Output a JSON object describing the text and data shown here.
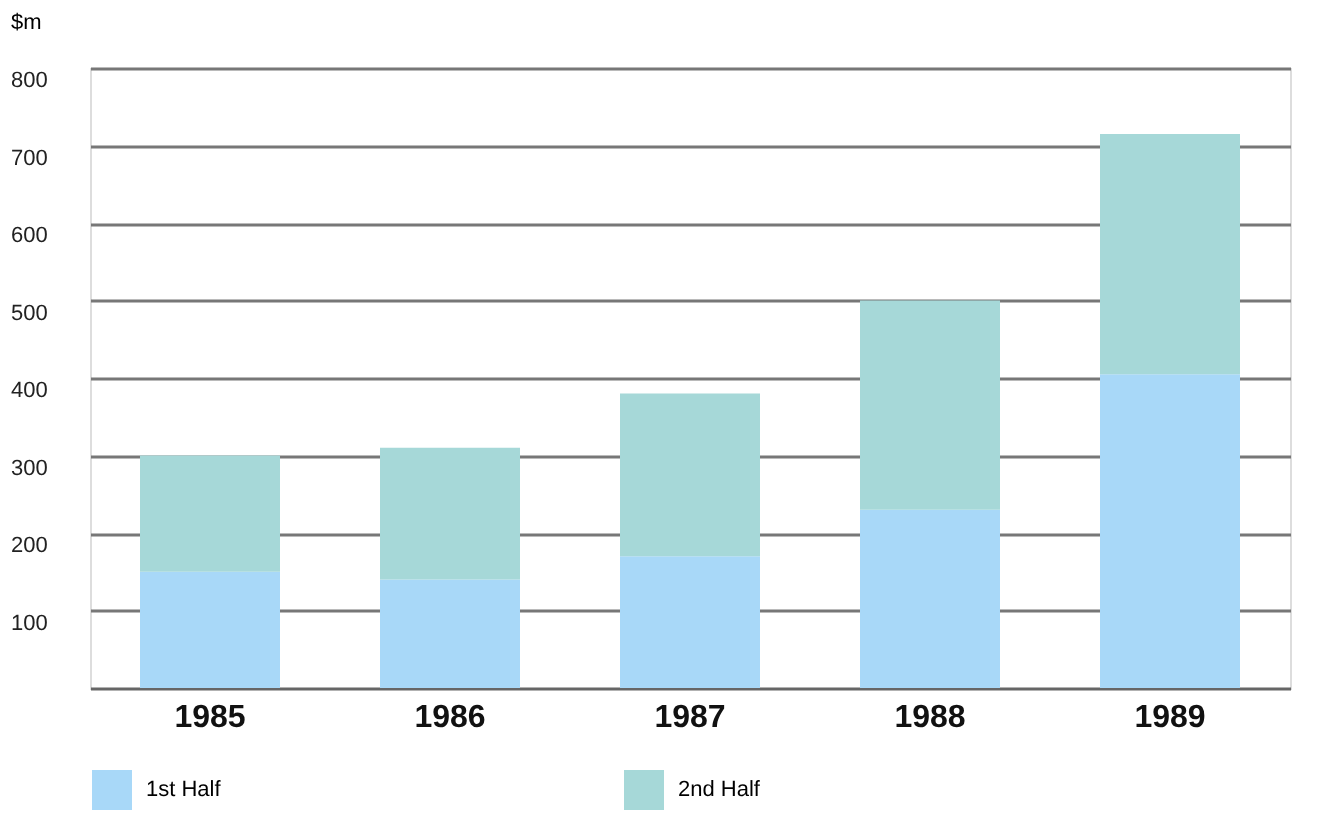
{
  "chart_data": {
    "type": "bar",
    "stacked": true,
    "ylabel": "$m",
    "categories": [
      "1985",
      "1986",
      "1987",
      "1988",
      "1989"
    ],
    "series": [
      {
        "name": "1st Half",
        "color": "#a8d8f8",
        "values": [
          150,
          140,
          170,
          230,
          405
        ]
      },
      {
        "name": "2nd Half",
        "color": "#a6d8d8",
        "values": [
          150,
          170,
          210,
          270,
          310
        ]
      }
    ],
    "ylim": [
      0,
      800
    ],
    "yticks": [
      100,
      200,
      300,
      400,
      500,
      600,
      700,
      800
    ],
    "grid": "y",
    "legend": "bottom"
  }
}
